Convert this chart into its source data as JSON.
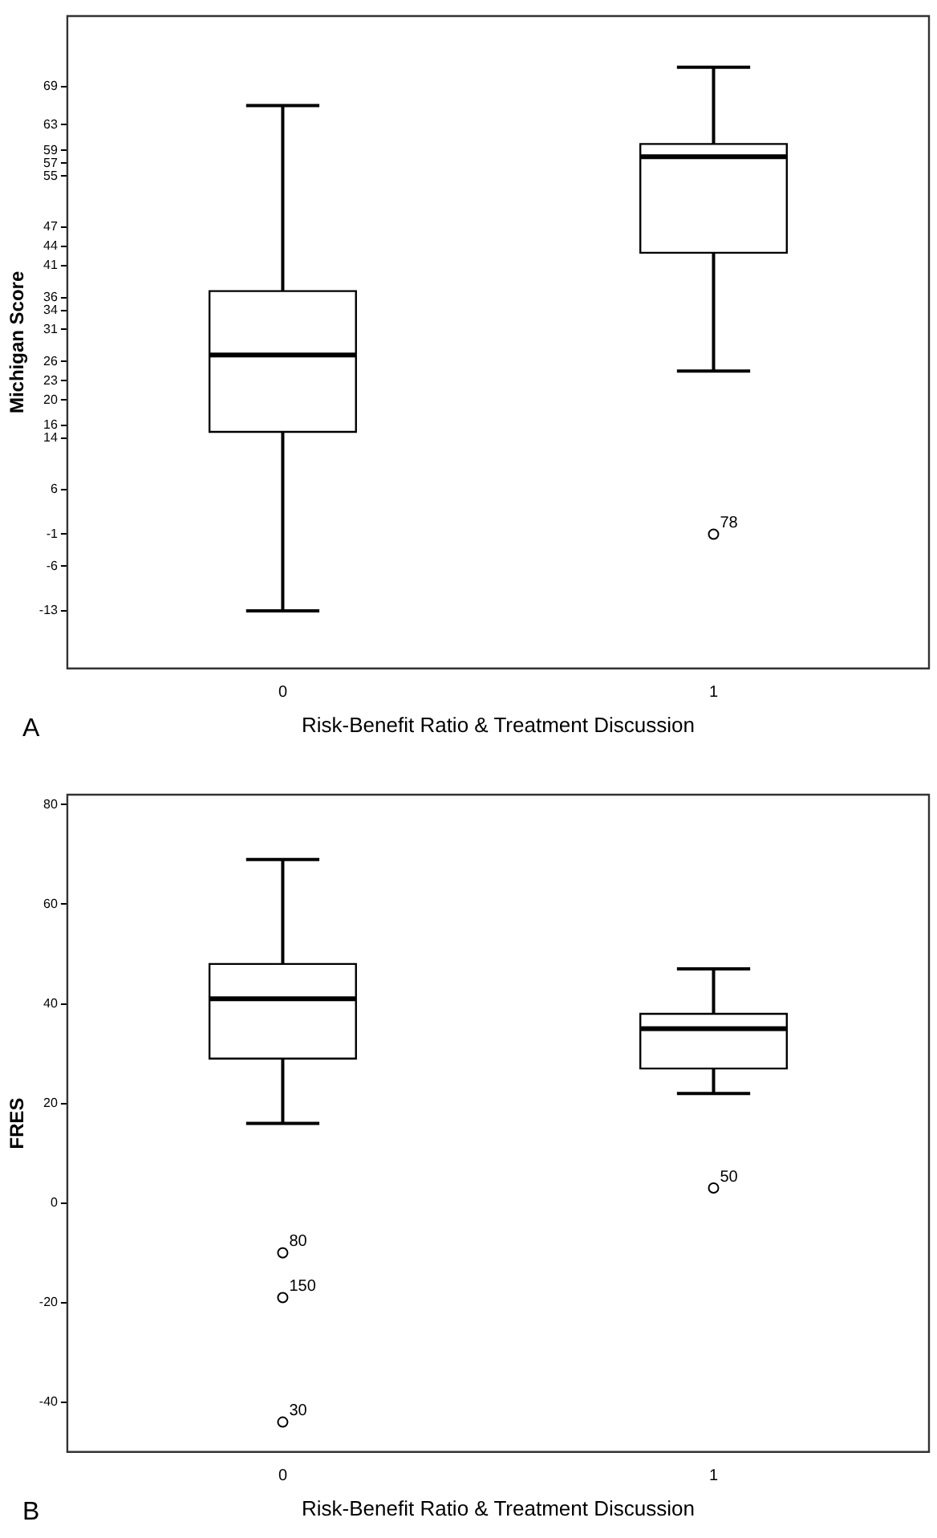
{
  "chart_data": [
    {
      "type": "box",
      "xlabel": "Risk-Benefit Ratio & Treatment Discussion",
      "ylabel": "Michigan Score",
      "categories": [
        "0",
        "1"
      ],
      "color": "#000000",
      "boxes": [
        {
          "low": -13,
          "q1": 15,
          "median": 27,
          "q3": 37,
          "high": 66
        },
        {
          "low": 24.5,
          "q1": 43,
          "median": 58,
          "q3": 60,
          "high": 72,
          "outliers": [
            -1
          ]
        }
      ],
      "ylim": [
        -22,
        80
      ],
      "yticks": [
        -13,
        -6,
        -1,
        6,
        14,
        16,
        20,
        23,
        26,
        31,
        34,
        36,
        41,
        44,
        47,
        55,
        57,
        59,
        63,
        69
      ],
      "grid": false,
      "annotations": [
        "78",
        "A"
      ]
    },
    {
      "type": "box",
      "xlabel": "Risk-Benefit Ratio & Treatment Discussion",
      "ylabel": "FRES",
      "categories": [
        "0",
        "1"
      ],
      "color": "#000000",
      "boxes": [
        {
          "low": 16,
          "q1": 29,
          "median": 41,
          "q3": 48,
          "high": 69,
          "outliers": [
            -10,
            -19,
            -44
          ]
        },
        {
          "low": 22,
          "q1": 27,
          "median": 35,
          "q3": 38,
          "high": 47,
          "outliers": [
            3
          ]
        }
      ],
      "ylim": [
        -50,
        82
      ],
      "yticks": [
        -40,
        -20,
        0,
        20,
        40,
        60,
        80
      ],
      "grid": false,
      "annotations": [
        "80",
        "150",
        "30",
        "50",
        "B"
      ]
    }
  ]
}
